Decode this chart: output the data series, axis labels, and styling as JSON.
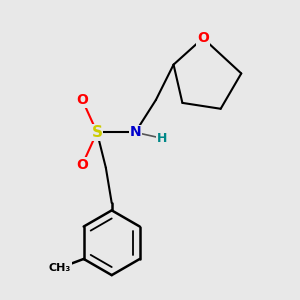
{
  "background_color": "#e8e8e8",
  "atom_colors": {
    "O": "#ff0000",
    "N": "#0000cc",
    "S": "#cccc00",
    "H": "#008888",
    "C": "#000000"
  },
  "figsize": [
    3.0,
    3.0
  ],
  "dpi": 100
}
